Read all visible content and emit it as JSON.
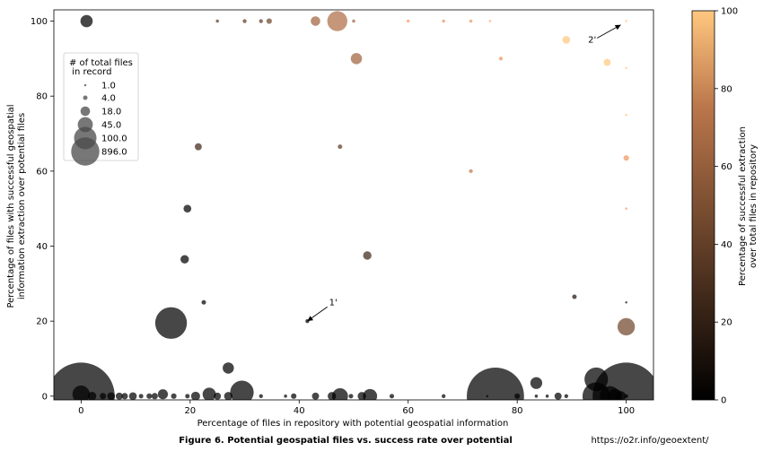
{
  "chart_data": {
    "type": "scatter",
    "title": "Figure 6. Potential geospatial files vs. success rate over potential",
    "source_url": "https://o2r.info/geoextent/",
    "xlabel": "Percentage of files in repository with potential geospatial information",
    "ylabel": [
      "Percentage of files with successful geospatial",
      "information extraction over potential files"
    ],
    "xlim": [
      -5,
      105
    ],
    "ylim": [
      -1,
      103
    ],
    "xticks": [
      0,
      20,
      40,
      60,
      80,
      100
    ],
    "yticks": [
      0,
      20,
      40,
      60,
      80,
      100
    ],
    "colorbar": {
      "label": [
        "Percentage of successful extraction",
        "over total files in repository"
      ],
      "range": [
        0,
        100
      ],
      "ticks": [
        0,
        20,
        40,
        60,
        80,
        100
      ],
      "colormap": "copper"
    },
    "legend": {
      "title": [
        "# of total files",
        " in record"
      ],
      "placement": "upper-left",
      "entries": [
        {
          "label": "1.0",
          "size": 1
        },
        {
          "label": "4.0",
          "size": 4
        },
        {
          "label": "18.0",
          "size": 18
        },
        {
          "label": "45.0",
          "size": 45
        },
        {
          "label": "100.0",
          "size": 100
        },
        {
          "label": "896.0",
          "size": 896
        }
      ]
    },
    "annotations": [
      {
        "text": "1'",
        "point": [
          41.5,
          20
        ],
        "text_at": [
          45.5,
          25
        ]
      },
      {
        "text": "2'",
        "point": [
          99,
          99
        ],
        "text_at": [
          93,
          95
        ]
      }
    ],
    "points": [
      {
        "x": 1,
        "y": 100,
        "s": 30,
        "c": 0
      },
      {
        "x": 25,
        "y": 100,
        "s": 2,
        "c": 30
      },
      {
        "x": 30,
        "y": 100,
        "s": 3,
        "c": 30
      },
      {
        "x": 33,
        "y": 100,
        "s": 3,
        "c": 30
      },
      {
        "x": 34.5,
        "y": 100,
        "s": 6,
        "c": 35
      },
      {
        "x": 43,
        "y": 100,
        "s": 18,
        "c": 50
      },
      {
        "x": 47,
        "y": 100,
        "s": 80,
        "c": 55
      },
      {
        "x": 50,
        "y": 100,
        "s": 2,
        "c": 50
      },
      {
        "x": 60,
        "y": 100,
        "s": 2,
        "c": 80
      },
      {
        "x": 66.5,
        "y": 100,
        "s": 2,
        "c": 75
      },
      {
        "x": 71.5,
        "y": 100,
        "s": 2,
        "c": 75
      },
      {
        "x": 75,
        "y": 100,
        "s": 1,
        "c": 80
      },
      {
        "x": 100,
        "y": 100,
        "s": 1,
        "c": 100
      },
      {
        "x": 89,
        "y": 95,
        "s": 12,
        "c": 100
      },
      {
        "x": 50.5,
        "y": 90,
        "s": 25,
        "c": 50
      },
      {
        "x": 77,
        "y": 90,
        "s": 3,
        "c": 75
      },
      {
        "x": 96.5,
        "y": 89,
        "s": 10,
        "c": 100
      },
      {
        "x": 100,
        "y": 87.5,
        "s": 1,
        "c": 100
      },
      {
        "x": 100,
        "y": 75,
        "s": 1,
        "c": 100
      },
      {
        "x": 21.5,
        "y": 66.5,
        "s": 10,
        "c": 20
      },
      {
        "x": 47.5,
        "y": 66.5,
        "s": 4,
        "c": 30
      },
      {
        "x": 71.5,
        "y": 60,
        "s": 3,
        "c": 60
      },
      {
        "x": 100,
        "y": 63.5,
        "s": 6,
        "c": 75
      },
      {
        "x": 19.5,
        "y": 50,
        "s": 12,
        "c": 0
      },
      {
        "x": 100,
        "y": 50,
        "s": 1,
        "c": 75
      },
      {
        "x": 19,
        "y": 36.5,
        "s": 14,
        "c": 0
      },
      {
        "x": 52.5,
        "y": 37.5,
        "s": 14,
        "c": 20
      },
      {
        "x": 22.5,
        "y": 25,
        "s": 4,
        "c": 0
      },
      {
        "x": 90.5,
        "y": 26.5,
        "s": 4,
        "c": 10
      },
      {
        "x": 100,
        "y": 25,
        "s": 1,
        "c": 10
      },
      {
        "x": 16.5,
        "y": 19.5,
        "s": 200,
        "c": 0
      },
      {
        "x": 41.5,
        "y": 20,
        "s": 3,
        "c": 0
      },
      {
        "x": 100,
        "y": 18.5,
        "s": 60,
        "c": 35
      },
      {
        "x": 27,
        "y": 7.5,
        "s": 25,
        "c": 0
      },
      {
        "x": 83.5,
        "y": 3.5,
        "s": 28,
        "c": 0
      },
      {
        "x": 94.5,
        "y": 4.5,
        "s": 110,
        "c": 0
      },
      {
        "x": 0,
        "y": 0,
        "s": 896,
        "c": 0
      },
      {
        "x": 0,
        "y": 0.5,
        "s": 60,
        "c": 0
      },
      {
        "x": 2,
        "y": 0,
        "s": 15,
        "c": 0
      },
      {
        "x": 4,
        "y": 0,
        "s": 8,
        "c": 0
      },
      {
        "x": 5.5,
        "y": 0,
        "s": 12,
        "c": 0
      },
      {
        "x": 7,
        "y": 0,
        "s": 10,
        "c": 0
      },
      {
        "x": 8,
        "y": 0,
        "s": 8,
        "c": 0
      },
      {
        "x": 9.5,
        "y": 0,
        "s": 12,
        "c": 0
      },
      {
        "x": 11,
        "y": 0,
        "s": 4,
        "c": 0
      },
      {
        "x": 12.5,
        "y": 0,
        "s": 6,
        "c": 0
      },
      {
        "x": 13.5,
        "y": 0,
        "s": 8,
        "c": 0
      },
      {
        "x": 15,
        "y": 0.5,
        "s": 20,
        "c": 0
      },
      {
        "x": 17,
        "y": 0,
        "s": 6,
        "c": 0
      },
      {
        "x": 19.5,
        "y": 0,
        "s": 4,
        "c": 0
      },
      {
        "x": 21,
        "y": 0,
        "s": 16,
        "c": 0
      },
      {
        "x": 23.5,
        "y": 0.5,
        "s": 35,
        "c": 0
      },
      {
        "x": 25,
        "y": 0,
        "s": 10,
        "c": 0
      },
      {
        "x": 27,
        "y": 0,
        "s": 14,
        "c": 0
      },
      {
        "x": 29.5,
        "y": 1,
        "s": 110,
        "c": 0
      },
      {
        "x": 33,
        "y": 0,
        "s": 3,
        "c": 0
      },
      {
        "x": 37.5,
        "y": 0,
        "s": 2,
        "c": 0
      },
      {
        "x": 39,
        "y": 0,
        "s": 6,
        "c": 0
      },
      {
        "x": 43,
        "y": 0,
        "s": 10,
        "c": 0
      },
      {
        "x": 46,
        "y": 0,
        "s": 14,
        "c": 0
      },
      {
        "x": 47.5,
        "y": 0,
        "s": 50,
        "c": 0
      },
      {
        "x": 49.5,
        "y": 0,
        "s": 4,
        "c": 0
      },
      {
        "x": 51.5,
        "y": 0,
        "s": 14,
        "c": 0
      },
      {
        "x": 53,
        "y": 0,
        "s": 40,
        "c": 0
      },
      {
        "x": 57,
        "y": 0,
        "s": 4,
        "c": 0
      },
      {
        "x": 66.5,
        "y": 0,
        "s": 3,
        "c": 0
      },
      {
        "x": 74.5,
        "y": 0,
        "s": 1,
        "c": 0
      },
      {
        "x": 76,
        "y": 0,
        "s": 650,
        "c": 0
      },
      {
        "x": 80,
        "y": 0,
        "s": 6,
        "c": 0
      },
      {
        "x": 83.5,
        "y": 0,
        "s": 2,
        "c": 0
      },
      {
        "x": 85.5,
        "y": 0,
        "s": 2,
        "c": 0
      },
      {
        "x": 87.5,
        "y": 0,
        "s": 10,
        "c": 0
      },
      {
        "x": 89,
        "y": 0,
        "s": 3,
        "c": 0
      },
      {
        "x": 94.5,
        "y": 0,
        "s": 150,
        "c": 0
      },
      {
        "x": 97,
        "y": 0,
        "s": 80,
        "c": 0
      },
      {
        "x": 98,
        "y": 0,
        "s": 40,
        "c": 0
      },
      {
        "x": 99,
        "y": 0,
        "s": 20,
        "c": 0
      },
      {
        "x": 100,
        "y": 0,
        "s": 896,
        "c": 0
      },
      {
        "x": 100,
        "y": 0,
        "s": 3,
        "c": 0
      }
    ]
  }
}
